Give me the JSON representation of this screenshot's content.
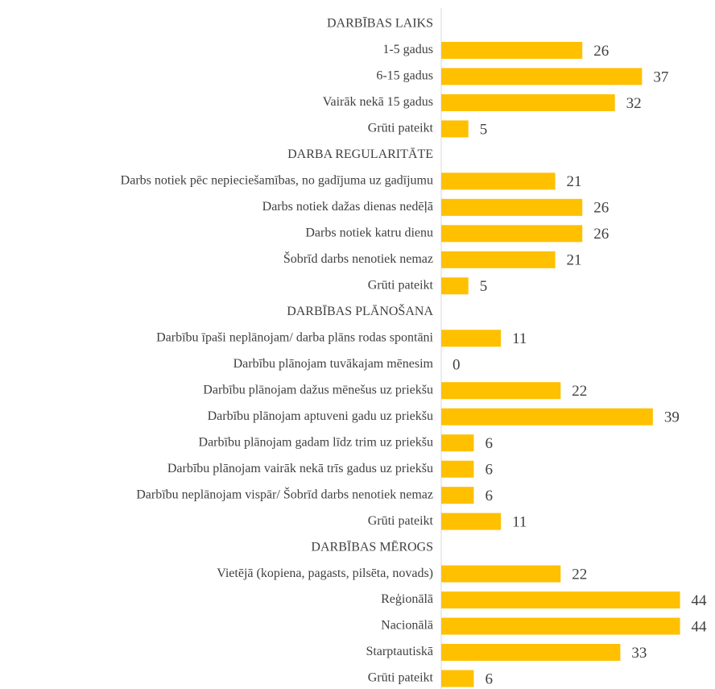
{
  "chart_data": {
    "type": "bar",
    "orientation": "horizontal",
    "categories": [
      "DARBĪBAS LAIKS",
      "1-5 gadus",
      "6-15 gadus",
      "Vairāk nekā 15 gadus",
      "Grūti pateikt",
      "DARBA REGULARITĀTE",
      "Darbs notiek pēc nepieciešamības, no gadījuma uz gadījumu",
      "Darbs notiek dažas dienas nedēļā",
      "Darbs notiek katru dienu",
      "Šobrīd darbs nenotiek nemaz",
      "Grūti pateikt",
      "DARBĪBAS PLĀNOŠANA",
      "Darbību īpaši neplānojam/ darba plāns rodas spontāni",
      "Darbību plānojam tuvākajam mēnesim",
      "Darbību plānojam dažus mēnešus uz priekšu",
      "Darbību plānojam aptuveni gadu uz priekšu",
      "Darbību plānojam gadam līdz trim uz priekšu",
      "Darbību plānojam vairāk nekā trīs gadus uz priekšu",
      "Darbību neplānojam vispār/ Šobrīd darbs nenotiek nemaz",
      "Grūti pateikt",
      "DARBĪBAS MĒROGS",
      "Vietējā (kopiena, pagasts, pilsēta, novads)",
      "Reģionālā",
      "Nacionālā",
      "Starptautiskā",
      "Grūti pateikt"
    ],
    "values": [
      null,
      26,
      37,
      32,
      5,
      null,
      21,
      26,
      26,
      21,
      5,
      null,
      11,
      0,
      22,
      39,
      6,
      6,
      6,
      11,
      null,
      22,
      44,
      44,
      33,
      6
    ],
    "color": "#ffc000",
    "xlim": [
      0,
      50
    ]
  }
}
